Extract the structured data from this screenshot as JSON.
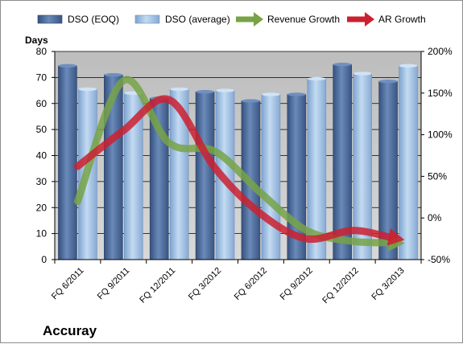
{
  "chart_data": {
    "type": "bar",
    "title": "Accuray",
    "ylabel_left": "Days",
    "categories": [
      "FQ 6/2011",
      "FQ 9/2011",
      "FQ 12/2011",
      "FQ 3/2012",
      "FQ 6/2012",
      "FQ 9/2012",
      "FQ 12/2012",
      "FQ 3/2013"
    ],
    "ylim_left": [
      0,
      80
    ],
    "yticks_left": [
      0,
      10,
      20,
      30,
      40,
      50,
      60,
      70,
      80
    ],
    "ylim_right": [
      -0.5,
      2.0
    ],
    "yticks_right_labels": [
      "-50%",
      "0%",
      "50%",
      "100%",
      "150%",
      "200%"
    ],
    "yticks_right_values": [
      -0.5,
      0,
      0.5,
      1.0,
      1.5,
      2.0
    ],
    "series": [
      {
        "name": "DSO (EOQ)",
        "kind": "bar",
        "axis": "left",
        "color": "#4f6d9c",
        "values": [
          74.5,
          71,
          62,
          64.5,
          61,
          63.5,
          75,
          68.5
        ]
      },
      {
        "name": "DSO (average)",
        "kind": "bar",
        "axis": "left",
        "color": "#a9c6e6",
        "values": [
          65.5,
          64,
          65.5,
          65,
          63.5,
          69.5,
          71.5,
          74.5
        ]
      },
      {
        "name": "Revenue Growth",
        "kind": "line",
        "axis": "right",
        "color": "#77a346",
        "values": [
          0.2,
          1.65,
          0.9,
          0.8,
          0.3,
          -0.15,
          -0.28,
          -0.3
        ]
      },
      {
        "name": "AR Growth",
        "kind": "line",
        "axis": "right",
        "color": "#cc2030",
        "values": [
          0.62,
          1.05,
          1.42,
          0.6,
          0.05,
          -0.25,
          -0.15,
          -0.25
        ]
      }
    ],
    "legend_position": "top",
    "grid": true
  },
  "colors": {
    "plot_background": "#c8c8c8",
    "gridline": "#000000",
    "bar_eoq_dark": "#3e5c8a",
    "bar_avg_dark": "#87a9d3"
  }
}
